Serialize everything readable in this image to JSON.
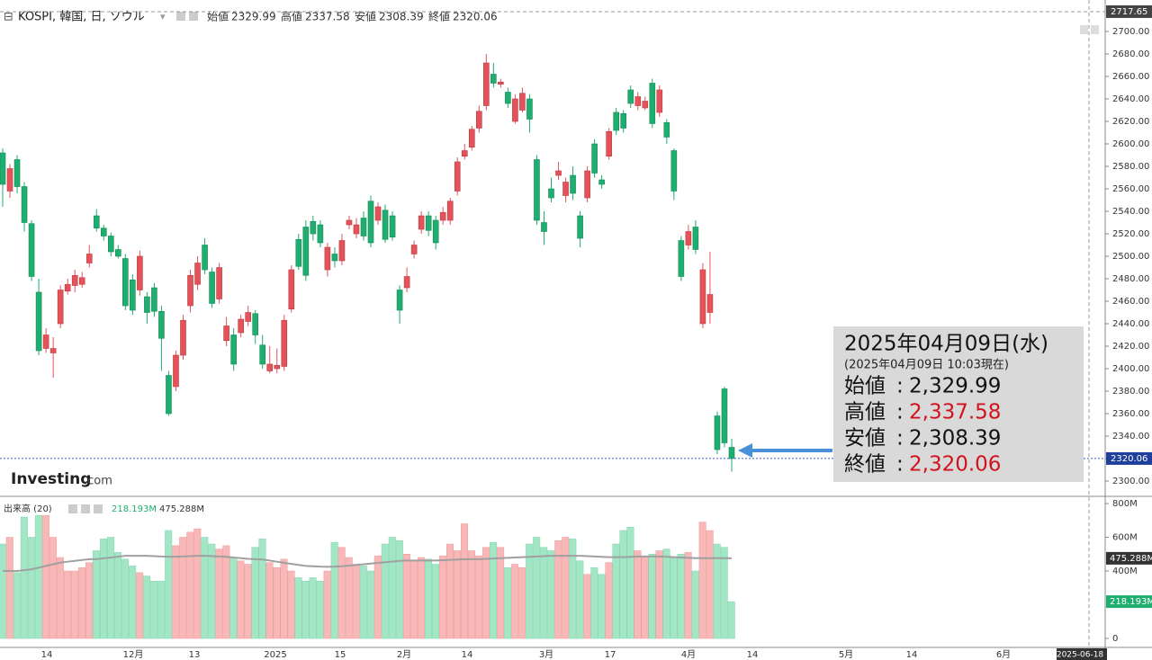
{
  "header": {
    "symbol": "KOSPI, 韓国, 日, ソウル",
    "labels": [
      "始値",
      "高値",
      "安値",
      "終値"
    ]
  },
  "watermark": [
    "Investing",
    ".com"
  ],
  "volume_pane": {
    "title": "出来高 (20)"
  },
  "x_labels": [
    "14",
    "12月",
    "13",
    "2025",
    "15",
    "2月",
    "14",
    "3月",
    "17",
    "4月",
    "14",
    "5月",
    "14",
    "6月",
    "2025-06-18"
  ],
  "info_box": {
    "date": "2025年04月09日(水)",
    "asof": "(2025年04月09日 10:03現在)",
    "separator": ":",
    "rows": [
      {
        "label": "始値",
        "value": "2,329.99",
        "color": "#111111"
      },
      {
        "label": "高値",
        "value": "2,337.58",
        "color": "#d0141e"
      },
      {
        "label": "安値",
        "value": "2,308.39",
        "color": "#111111"
      },
      {
        "label": "終値",
        "value": "2,320.06",
        "color": "#d0141e"
      }
    ]
  },
  "chart_data": {
    "type": "candlestick",
    "up_color": "#e5535a",
    "down_color": "#1fae70",
    "up_volume_color": "#f8b8b8",
    "down_volume_color": "#a3e6c6",
    "ma_color": "#a0a0a0",
    "ylim": [
      2290,
      2728
    ],
    "top_line": 2717.65,
    "yticks": [
      {
        "value": 2300,
        "label": "2300.00"
      },
      {
        "value": 2320,
        "label": "2320.00"
      },
      {
        "value": 2340,
        "label": "2340.00"
      },
      {
        "value": 2360,
        "label": "2360.00"
      },
      {
        "value": 2380,
        "label": "2380.00"
      },
      {
        "value": 2400,
        "label": "2400.00"
      },
      {
        "value": 2420,
        "label": "2420.00"
      },
      {
        "value": 2440,
        "label": "2440.00"
      },
      {
        "value": 2460,
        "label": "2460.00"
      },
      {
        "value": 2480,
        "label": "2480.00"
      },
      {
        "value": 2500,
        "label": "2500.00"
      },
      {
        "value": 2520,
        "label": "2520.00"
      },
      {
        "value": 2540,
        "label": "2540.00"
      },
      {
        "value": 2560,
        "label": "2560.00"
      },
      {
        "value": 2580,
        "label": "2580.00"
      },
      {
        "value": 2600,
        "label": "2600.00"
      },
      {
        "value": 2620,
        "label": "2620.00"
      },
      {
        "value": 2640,
        "label": "2640.00"
      },
      {
        "value": 2660,
        "label": "2660.00"
      },
      {
        "value": 2680,
        "label": "2680.00"
      },
      {
        "value": 2700,
        "label": "2700.00"
      }
    ],
    "candles": [
      [
        2592,
        2596,
        2544,
        2564
      ],
      [
        2558,
        2582,
        2552,
        2578
      ],
      [
        2586,
        2590,
        2556,
        2562
      ],
      [
        2562,
        2566,
        2522,
        2530
      ],
      [
        2529,
        2532,
        2478,
        2482
      ],
      [
        2468,
        2480,
        2412,
        2416
      ],
      [
        2418,
        2436,
        2414,
        2430
      ],
      [
        2414,
        2428,
        2392,
        2418
      ],
      [
        2440,
        2474,
        2436,
        2470
      ],
      [
        2469,
        2480,
        2466,
        2475
      ],
      [
        2474,
        2488,
        2468,
        2483
      ],
      [
        2475,
        2486,
        2472,
        2481
      ],
      [
        2494,
        2510,
        2490,
        2502
      ],
      [
        2536,
        2542,
        2522,
        2525
      ],
      [
        2525,
        2528,
        2514,
        2518
      ],
      [
        2518,
        2521,
        2500,
        2504
      ],
      [
        2506,
        2510,
        2498,
        2500
      ],
      [
        2498,
        2502,
        2452,
        2456
      ],
      [
        2479,
        2484,
        2448,
        2452
      ],
      [
        2470,
        2505,
        2465,
        2500
      ],
      [
        2464,
        2468,
        2440,
        2450
      ],
      [
        2472,
        2476,
        2446,
        2451
      ],
      [
        2451,
        2456,
        2398,
        2427
      ],
      [
        2394,
        2398,
        2358,
        2360
      ],
      [
        2384,
        2416,
        2380,
        2412
      ],
      [
        2412,
        2448,
        2408,
        2443
      ],
      [
        2456,
        2488,
        2450,
        2483
      ],
      [
        2475,
        2500,
        2470,
        2494
      ],
      [
        2510,
        2516,
        2484,
        2488
      ],
      [
        2486,
        2490,
        2454,
        2458
      ],
      [
        2462,
        2494,
        2458,
        2490
      ],
      [
        2425,
        2446,
        2420,
        2438
      ],
      [
        2430,
        2436,
        2398,
        2404
      ],
      [
        2432,
        2448,
        2428,
        2444
      ],
      [
        2442,
        2456,
        2438,
        2450
      ],
      [
        2449,
        2452,
        2422,
        2430
      ],
      [
        2421,
        2430,
        2400,
        2404
      ],
      [
        2398,
        2420,
        2396,
        2404
      ],
      [
        2400,
        2418,
        2396,
        2403
      ],
      [
        2402,
        2448,
        2398,
        2443
      ],
      [
        2453,
        2492,
        2450,
        2488
      ],
      [
        2515,
        2520,
        2488,
        2491
      ],
      [
        2526,
        2532,
        2478,
        2483
      ],
      [
        2531,
        2536,
        2514,
        2520
      ],
      [
        2528,
        2532,
        2508,
        2512
      ],
      [
        2488,
        2512,
        2482,
        2508
      ],
      [
        2502,
        2508,
        2490,
        2496
      ],
      [
        2496,
        2520,
        2492,
        2514
      ],
      [
        2528,
        2536,
        2524,
        2532
      ],
      [
        2520,
        2534,
        2516,
        2528
      ],
      [
        2534,
        2540,
        2514,
        2518
      ],
      [
        2549,
        2554,
        2508,
        2512
      ],
      [
        2532,
        2548,
        2528,
        2544
      ],
      [
        2541,
        2546,
        2512,
        2515
      ],
      [
        2536,
        2540,
        2514,
        2517
      ],
      [
        2470,
        2474,
        2440,
        2452
      ],
      [
        2472,
        2490,
        2468,
        2482
      ],
      [
        2502,
        2514,
        2498,
        2510
      ],
      [
        2524,
        2540,
        2520,
        2536
      ],
      [
        2536,
        2540,
        2518,
        2523
      ],
      [
        2532,
        2536,
        2506,
        2512
      ],
      [
        2532,
        2544,
        2528,
        2539
      ],
      [
        2532,
        2552,
        2528,
        2549
      ],
      [
        2558,
        2588,
        2554,
        2584
      ],
      [
        2589,
        2600,
        2586,
        2594
      ],
      [
        2597,
        2616,
        2594,
        2613
      ],
      [
        2614,
        2634,
        2610,
        2629
      ],
      [
        2634,
        2680,
        2630,
        2672
      ],
      [
        2662,
        2672,
        2650,
        2654
      ],
      [
        2653,
        2658,
        2650,
        2655
      ],
      [
        2646,
        2650,
        2632,
        2636
      ],
      [
        2620,
        2644,
        2618,
        2640
      ],
      [
        2630,
        2650,
        2628,
        2645
      ],
      [
        2640,
        2644,
        2610,
        2622
      ],
      [
        2586,
        2590,
        2528,
        2532
      ],
      [
        2530,
        2540,
        2510,
        2522
      ],
      [
        2560,
        2570,
        2548,
        2552
      ],
      [
        2572,
        2584,
        2568,
        2576
      ],
      [
        2554,
        2570,
        2548,
        2566
      ],
      [
        2572,
        2580,
        2550,
        2556
      ],
      [
        2536,
        2540,
        2508,
        2516
      ],
      [
        2552,
        2580,
        2548,
        2576
      ],
      [
        2600,
        2604,
        2570,
        2574
      ],
      [
        2568,
        2572,
        2560,
        2564
      ],
      [
        2589,
        2614,
        2586,
        2611
      ],
      [
        2628,
        2632,
        2608,
        2612
      ],
      [
        2627,
        2630,
        2610,
        2614
      ],
      [
        2648,
        2652,
        2632,
        2636
      ],
      [
        2634,
        2646,
        2630,
        2642
      ],
      [
        2632,
        2642,
        2630,
        2638
      ],
      [
        2654,
        2658,
        2614,
        2618
      ],
      [
        2628,
        2652,
        2624,
        2648
      ],
      [
        2619,
        2622,
        2600,
        2606
      ],
      [
        2594,
        2596,
        2550,
        2558
      ],
      [
        2514,
        2518,
        2478,
        2482
      ],
      [
        2510,
        2528,
        2506,
        2522
      ],
      [
        2526,
        2532,
        2502,
        2506
      ],
      [
        2440,
        2494,
        2436,
        2488
      ],
      [
        2450,
        2504,
        2440,
        2466
      ],
      [
        2358,
        2362,
        2324,
        2328
      ],
      [
        2382,
        2384,
        2330,
        2334
      ],
      [
        2329.99,
        2337.58,
        2308.39,
        2320.06
      ]
    ],
    "vlim": [
      0,
      800
    ],
    "vticks": [
      {
        "value": 0,
        "label": "0"
      },
      {
        "value": 400,
        "label": "400M"
      },
      {
        "value": 600,
        "label": "600M"
      },
      {
        "value": 800,
        "label": "800M"
      }
    ],
    "volume": [
      560,
      600,
      390,
      720,
      600,
      730,
      730,
      600,
      480,
      400,
      400,
      420,
      450,
      520,
      590,
      600,
      510,
      470,
      430,
      390,
      370,
      340,
      340,
      640,
      550,
      600,
      630,
      650,
      600,
      560,
      530,
      550,
      480,
      460,
      440,
      540,
      590,
      450,
      420,
      470,
      400,
      360,
      340,
      360,
      340,
      400,
      570,
      540,
      480,
      440,
      430,
      400,
      490,
      560,
      600,
      580,
      500,
      460,
      480,
      470,
      440,
      490,
      560,
      520,
      680,
      520,
      490,
      540,
      570,
      540,
      420,
      440,
      420,
      560,
      600,
      540,
      520,
      580,
      600,
      590,
      460,
      380,
      420,
      380,
      450,
      560,
      640,
      660,
      520,
      480,
      500,
      520,
      530,
      480,
      500,
      510,
      400,
      690,
      640,
      560,
      540,
      218.193
    ],
    "volume_ma": [
      400,
      400,
      400,
      405,
      410,
      420,
      430,
      440,
      450,
      455,
      460,
      465,
      470,
      470,
      475,
      480,
      485,
      490,
      490,
      490,
      490,
      488,
      486,
      485,
      485,
      486,
      488,
      490,
      490,
      488,
      486,
      484,
      480,
      476,
      472,
      470,
      468,
      462,
      455,
      448,
      442,
      436,
      430,
      428,
      426,
      425,
      426,
      428,
      432,
      436,
      440,
      444,
      448,
      452,
      456,
      460,
      462,
      462,
      462,
      462,
      462,
      464,
      466,
      468,
      470,
      470,
      470,
      472,
      474,
      476,
      478,
      480,
      482,
      484,
      486,
      488,
      490,
      490,
      490,
      490,
      490,
      488,
      486,
      484,
      482,
      482,
      482,
      484,
      486,
      486,
      486,
      486,
      484,
      482,
      480,
      478,
      476,
      476,
      476,
      476,
      476,
      475.288
    ],
    "volume_labels": {
      "last": "218.193M",
      "ma": "475.288M"
    }
  }
}
